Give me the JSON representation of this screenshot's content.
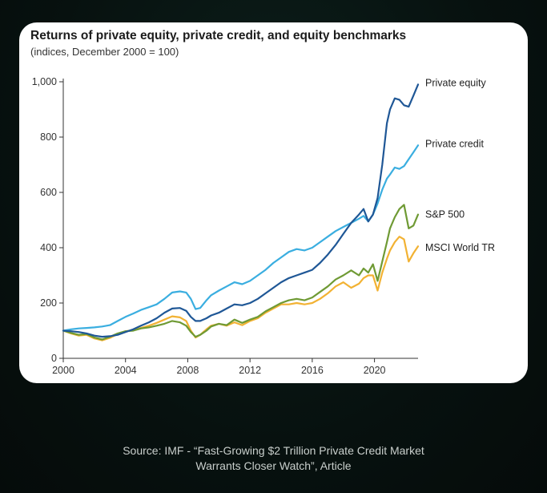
{
  "chart_data": {
    "type": "line",
    "title": "Returns of private equity, private credit, and equity benchmarks",
    "subtitle": "(indices, December 2000 = 100)",
    "xlabel": "",
    "ylabel": "",
    "xlim": [
      2000,
      2022.8
    ],
    "ylim": [
      0,
      1000
    ],
    "x_ticks": [
      "2000",
      "2004",
      "2008",
      "2012",
      "2016",
      "2020"
    ],
    "y_ticks": [
      "0",
      "200",
      "400",
      "600",
      "800",
      "1,000"
    ],
    "grid": false,
    "legend": "direct labels at line ends",
    "series": [
      {
        "name": "Private equity",
        "color": "#1f5796",
        "points": [
          [
            2000,
            100
          ],
          [
            2000.5,
            98
          ],
          [
            2001,
            95
          ],
          [
            2001.5,
            90
          ],
          [
            2002,
            82
          ],
          [
            2002.5,
            78
          ],
          [
            2003,
            80
          ],
          [
            2003.5,
            85
          ],
          [
            2004,
            95
          ],
          [
            2004.5,
            105
          ],
          [
            2005,
            118
          ],
          [
            2005.5,
            130
          ],
          [
            2006,
            145
          ],
          [
            2006.5,
            165
          ],
          [
            2007,
            180
          ],
          [
            2007.5,
            182
          ],
          [
            2007.9,
            172
          ],
          [
            2008.2,
            150
          ],
          [
            2008.5,
            135
          ],
          [
            2008.8,
            135
          ],
          [
            2009.2,
            145
          ],
          [
            2009.5,
            155
          ],
          [
            2010,
            165
          ],
          [
            2010.5,
            180
          ],
          [
            2011,
            195
          ],
          [
            2011.5,
            192
          ],
          [
            2012,
            200
          ],
          [
            2012.5,
            215
          ],
          [
            2013,
            235
          ],
          [
            2013.5,
            255
          ],
          [
            2014,
            275
          ],
          [
            2014.5,
            290
          ],
          [
            2015,
            300
          ],
          [
            2015.5,
            310
          ],
          [
            2016,
            320
          ],
          [
            2016.5,
            345
          ],
          [
            2017,
            375
          ],
          [
            2017.5,
            410
          ],
          [
            2018,
            450
          ],
          [
            2018.5,
            490
          ],
          [
            2019,
            520
          ],
          [
            2019.3,
            540
          ],
          [
            2019.6,
            495
          ],
          [
            2019.9,
            520
          ],
          [
            2020.2,
            580
          ],
          [
            2020.5,
            700
          ],
          [
            2020.8,
            850
          ],
          [
            2021.0,
            900
          ],
          [
            2021.3,
            940
          ],
          [
            2021.6,
            935
          ],
          [
            2021.9,
            915
          ],
          [
            2022.2,
            910
          ],
          [
            2022.5,
            950
          ],
          [
            2022.8,
            990
          ]
        ]
      },
      {
        "name": "Private credit",
        "color": "#3aaee0",
        "points": [
          [
            2000,
            100
          ],
          [
            2000.5,
            105
          ],
          [
            2001,
            108
          ],
          [
            2001.5,
            110
          ],
          [
            2002,
            112
          ],
          [
            2002.5,
            115
          ],
          [
            2003,
            120
          ],
          [
            2003.5,
            135
          ],
          [
            2004,
            150
          ],
          [
            2004.5,
            162
          ],
          [
            2005,
            175
          ],
          [
            2005.5,
            185
          ],
          [
            2006,
            195
          ],
          [
            2006.5,
            215
          ],
          [
            2007,
            238
          ],
          [
            2007.5,
            242
          ],
          [
            2007.9,
            238
          ],
          [
            2008.2,
            215
          ],
          [
            2008.5,
            178
          ],
          [
            2008.8,
            182
          ],
          [
            2009.2,
            210
          ],
          [
            2009.5,
            228
          ],
          [
            2010,
            245
          ],
          [
            2010.5,
            260
          ],
          [
            2011,
            275
          ],
          [
            2011.5,
            268
          ],
          [
            2012,
            280
          ],
          [
            2012.5,
            300
          ],
          [
            2013,
            320
          ],
          [
            2013.5,
            345
          ],
          [
            2014,
            365
          ],
          [
            2014.5,
            385
          ],
          [
            2015,
            395
          ],
          [
            2015.5,
            390
          ],
          [
            2016,
            400
          ],
          [
            2016.5,
            420
          ],
          [
            2017,
            440
          ],
          [
            2017.5,
            460
          ],
          [
            2018,
            475
          ],
          [
            2018.5,
            490
          ],
          [
            2019,
            505
          ],
          [
            2019.3,
            515
          ],
          [
            2019.6,
            495
          ],
          [
            2019.9,
            520
          ],
          [
            2020.2,
            560
          ],
          [
            2020.5,
            610
          ],
          [
            2020.8,
            650
          ],
          [
            2021.0,
            665
          ],
          [
            2021.3,
            690
          ],
          [
            2021.6,
            685
          ],
          [
            2021.9,
            695
          ],
          [
            2022.2,
            720
          ],
          [
            2022.5,
            745
          ],
          [
            2022.8,
            770
          ]
        ]
      },
      {
        "name": "S&P 500",
        "color": "#6f9a34",
        "points": [
          [
            2000,
            100
          ],
          [
            2000.5,
            92
          ],
          [
            2001,
            85
          ],
          [
            2001.5,
            88
          ],
          [
            2002,
            75
          ],
          [
            2002.5,
            68
          ],
          [
            2003,
            78
          ],
          [
            2003.5,
            90
          ],
          [
            2004,
            98
          ],
          [
            2004.5,
            100
          ],
          [
            2005,
            108
          ],
          [
            2005.5,
            112
          ],
          [
            2006,
            118
          ],
          [
            2006.5,
            125
          ],
          [
            2007,
            135
          ],
          [
            2007.5,
            130
          ],
          [
            2007.9,
            118
          ],
          [
            2008.2,
            95
          ],
          [
            2008.5,
            78
          ],
          [
            2008.8,
            85
          ],
          [
            2009.2,
            100
          ],
          [
            2009.5,
            115
          ],
          [
            2010,
            125
          ],
          [
            2010.5,
            120
          ],
          [
            2011,
            140
          ],
          [
            2011.5,
            128
          ],
          [
            2012,
            140
          ],
          [
            2012.5,
            150
          ],
          [
            2013,
            170
          ],
          [
            2013.5,
            185
          ],
          [
            2014,
            200
          ],
          [
            2014.5,
            210
          ],
          [
            2015,
            215
          ],
          [
            2015.5,
            210
          ],
          [
            2016,
            220
          ],
          [
            2016.5,
            240
          ],
          [
            2017,
            260
          ],
          [
            2017.5,
            285
          ],
          [
            2018,
            300
          ],
          [
            2018.5,
            318
          ],
          [
            2019,
            300
          ],
          [
            2019.3,
            325
          ],
          [
            2019.6,
            310
          ],
          [
            2019.9,
            340
          ],
          [
            2020.2,
            280
          ],
          [
            2020.5,
            350
          ],
          [
            2020.8,
            420
          ],
          [
            2021.0,
            470
          ],
          [
            2021.3,
            510
          ],
          [
            2021.6,
            540
          ],
          [
            2021.9,
            555
          ],
          [
            2022.2,
            470
          ],
          [
            2022.5,
            480
          ],
          [
            2022.8,
            520
          ]
        ]
      },
      {
        "name": "MSCI World TR",
        "color": "#f2b233",
        "points": [
          [
            2000,
            100
          ],
          [
            2000.5,
            90
          ],
          [
            2001,
            82
          ],
          [
            2001.5,
            85
          ],
          [
            2002,
            72
          ],
          [
            2002.5,
            65
          ],
          [
            2003,
            74
          ],
          [
            2003.5,
            88
          ],
          [
            2004,
            98
          ],
          [
            2004.5,
            102
          ],
          [
            2005,
            110
          ],
          [
            2005.5,
            118
          ],
          [
            2006,
            128
          ],
          [
            2006.5,
            140
          ],
          [
            2007,
            152
          ],
          [
            2007.5,
            148
          ],
          [
            2007.9,
            135
          ],
          [
            2008.2,
            100
          ],
          [
            2008.5,
            75
          ],
          [
            2008.8,
            85
          ],
          [
            2009.2,
            105
          ],
          [
            2009.5,
            118
          ],
          [
            2010,
            125
          ],
          [
            2010.5,
            118
          ],
          [
            2011,
            130
          ],
          [
            2011.5,
            120
          ],
          [
            2012,
            135
          ],
          [
            2012.5,
            145
          ],
          [
            2013,
            165
          ],
          [
            2013.5,
            180
          ],
          [
            2014,
            195
          ],
          [
            2014.5,
            195
          ],
          [
            2015,
            200
          ],
          [
            2015.5,
            195
          ],
          [
            2016,
            200
          ],
          [
            2016.5,
            215
          ],
          [
            2017,
            235
          ],
          [
            2017.5,
            260
          ],
          [
            2018,
            275
          ],
          [
            2018.5,
            255
          ],
          [
            2019,
            270
          ],
          [
            2019.3,
            290
          ],
          [
            2019.6,
            300
          ],
          [
            2019.9,
            300
          ],
          [
            2020.2,
            245
          ],
          [
            2020.5,
            310
          ],
          [
            2020.8,
            360
          ],
          [
            2021.0,
            390
          ],
          [
            2021.3,
            420
          ],
          [
            2021.6,
            440
          ],
          [
            2021.9,
            430
          ],
          [
            2022.2,
            350
          ],
          [
            2022.5,
            380
          ],
          [
            2022.8,
            405
          ]
        ]
      }
    ],
    "end_labels": [
      {
        "text": "Private equity",
        "y": 995
      },
      {
        "text": "Private credit",
        "y": 775
      },
      {
        "text": "S&P 500",
        "y": 520
      },
      {
        "text": "MSCI World TR",
        "y": 400
      }
    ]
  },
  "footer": {
    "line1": "Source:  IMF - “Fast-Growing $2 Trillion Private Credit Market",
    "line2": "Warrants Closer Watch”, Article"
  }
}
